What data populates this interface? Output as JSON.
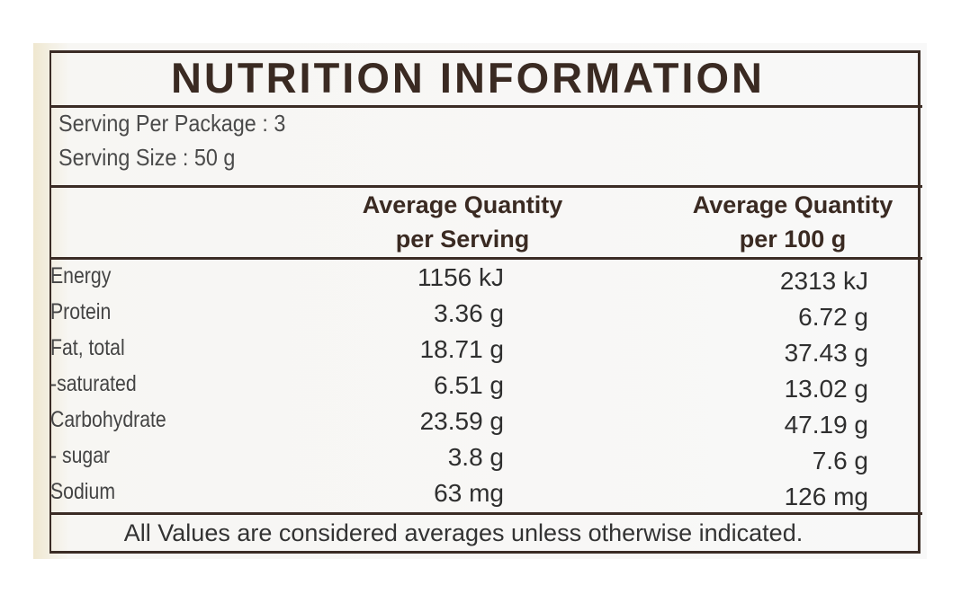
{
  "title": "NUTRITION INFORMATION",
  "serving": {
    "per_package": "Serving Per Package : 3",
    "size": "Serving Size : 50 g"
  },
  "table": {
    "headers": [
      [
        "Average Quantity",
        "per Serving"
      ],
      [
        "Average Quantity",
        "per 100 g"
      ]
    ],
    "rows": [
      [
        "Energy",
        "1156 kJ",
        "2313 kJ"
      ],
      [
        "Protein",
        "3.36 g",
        "6.72 g"
      ],
      [
        "Fat, total",
        "18.71 g",
        "37.43 g"
      ],
      [
        "-saturated",
        "6.51 g",
        "13.02 g"
      ],
      [
        "Carbohydrate",
        "23.59 g",
        "47.19 g"
      ],
      [
        "- sugar",
        "3.8 g",
        "7.6 g"
      ],
      [
        "Sodium",
        "63 mg",
        "126 mg"
      ]
    ]
  },
  "footnote": "All Values are considered averages unless otherwise indicated."
}
